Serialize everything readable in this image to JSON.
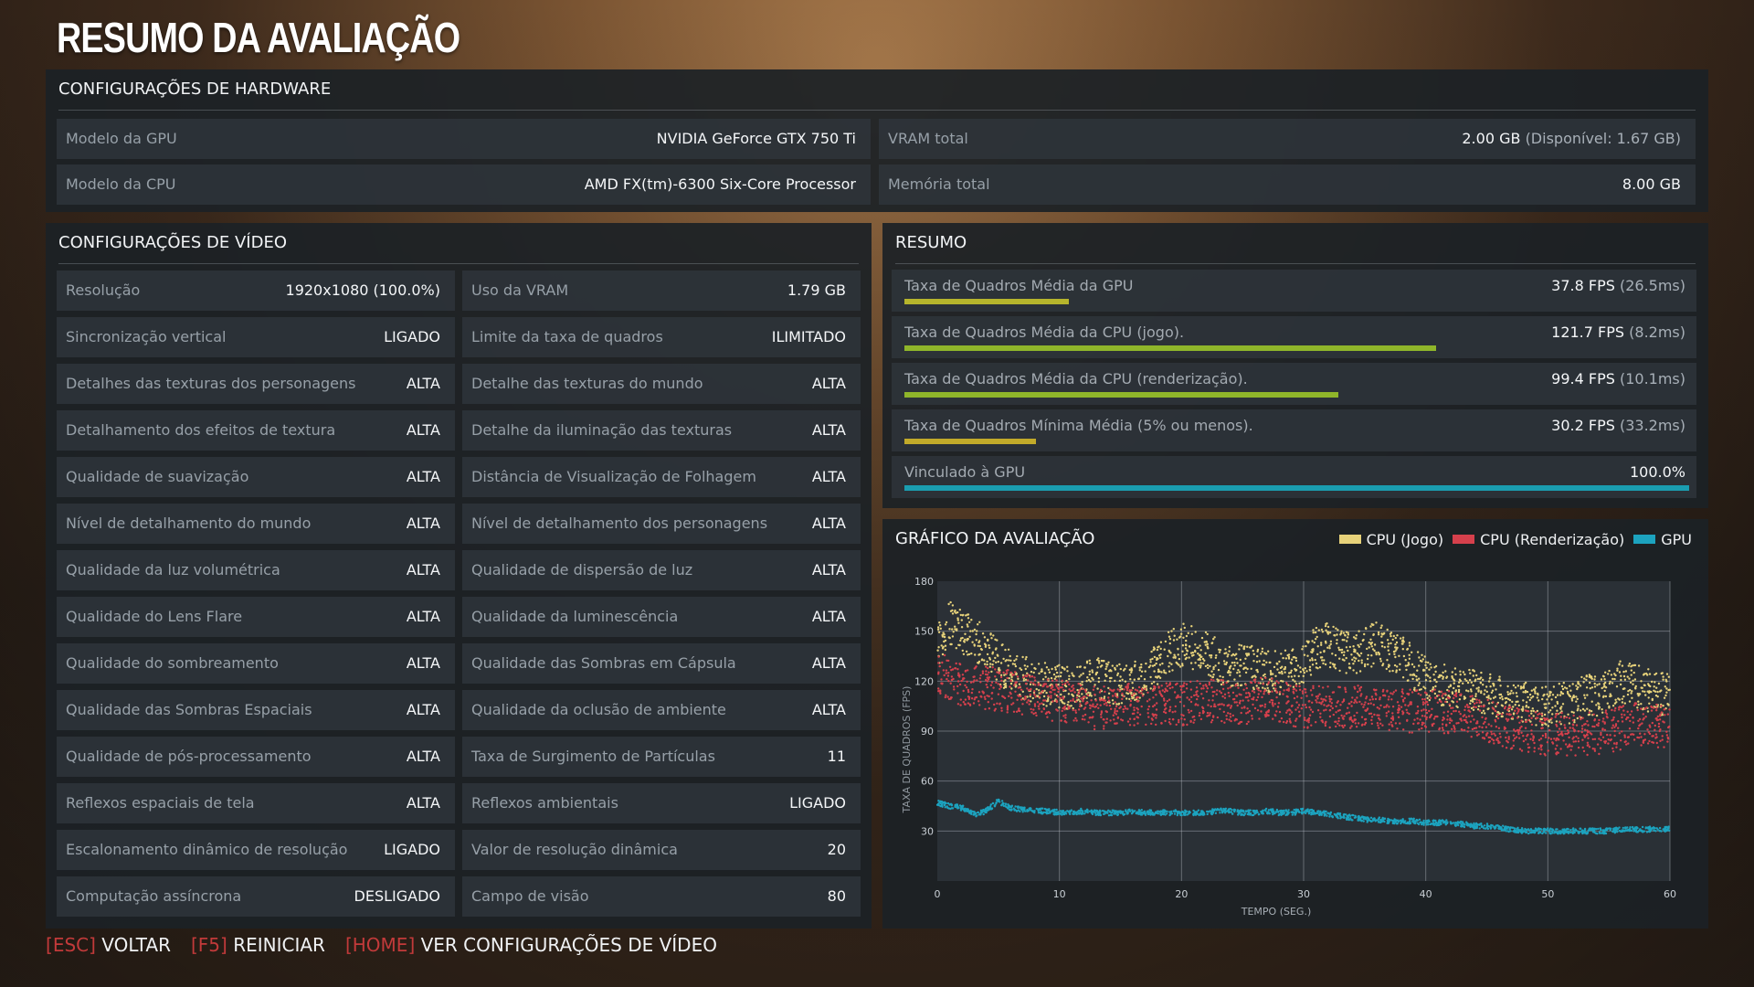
{
  "title": "RESUMO DA AVALIAÇÃO",
  "hardware": {
    "header": "CONFIGURAÇÕES DE HARDWARE",
    "gpu_label": "Modelo da GPU",
    "gpu_value": "NVIDIA GeForce GTX 750 Ti",
    "cpu_label": "Modelo da CPU",
    "cpu_value": "AMD FX(tm)-6300 Six-Core Processor",
    "vram_label": "VRAM total",
    "vram_value": "2.00 GB",
    "vram_note": "(Disponível: 1.67 GB)",
    "mem_label": "Memória total",
    "mem_value": "8.00 GB"
  },
  "video": {
    "header": "CONFIGURAÇÕES DE VÍDEO",
    "left": [
      {
        "label": "Resolução",
        "value": "1920x1080 (100.0%)"
      },
      {
        "label": "Sincronização vertical",
        "value": "LIGADO"
      },
      {
        "label": "Detalhes das texturas dos personagens",
        "value": "ALTA"
      },
      {
        "label": "Detalhamento dos efeitos de textura",
        "value": "ALTA"
      },
      {
        "label": "Qualidade de suavização",
        "value": "ALTA"
      },
      {
        "label": "Nível de detalhamento do mundo",
        "value": "ALTA"
      },
      {
        "label": "Qualidade da luz volumétrica",
        "value": "ALTA"
      },
      {
        "label": "Qualidade do Lens Flare",
        "value": "ALTA"
      },
      {
        "label": "Qualidade do sombreamento",
        "value": "ALTA"
      },
      {
        "label": "Qualidade das Sombras Espaciais",
        "value": "ALTA"
      },
      {
        "label": "Qualidade de pós-processamento",
        "value": "ALTA"
      },
      {
        "label": "Reflexos espaciais de tela",
        "value": "ALTA"
      },
      {
        "label": "Escalonamento dinâmico de resolução",
        "value": "LIGADO"
      },
      {
        "label": "Computação assíncrona",
        "value": "DESLIGADO"
      }
    ],
    "right": [
      {
        "label": "Uso da VRAM",
        "value": "1.79 GB"
      },
      {
        "label": "Limite da taxa de quadros",
        "value": "ILIMITADO"
      },
      {
        "label": "Detalhe das texturas do mundo",
        "value": "ALTA"
      },
      {
        "label": "Detalhe da iluminação das texturas",
        "value": "ALTA"
      },
      {
        "label": "Distância de Visualização de Folhagem",
        "value": "ALTA"
      },
      {
        "label": "Nível de detalhamento dos personagens",
        "value": "ALTA"
      },
      {
        "label": "Qualidade de dispersão de luz",
        "value": "ALTA"
      },
      {
        "label": "Qualidade da luminescência",
        "value": "ALTA"
      },
      {
        "label": "Qualidade das Sombras em Cápsula",
        "value": "ALTA"
      },
      {
        "label": "Qualidade da oclusão de ambiente",
        "value": "ALTA"
      },
      {
        "label": "Taxa de Surgimento de Partículas",
        "value": "11"
      },
      {
        "label": "Reflexos ambientais",
        "value": "LIGADO"
      },
      {
        "label": "Valor de resolução dinâmica",
        "value": "20"
      },
      {
        "label": "Campo de visão",
        "value": "80"
      }
    ]
  },
  "summary": {
    "header": "RESUMO",
    "rows": [
      {
        "label": "Taxa de Quadros Média da GPU",
        "value": "37.8 FPS",
        "note": "(26.5ms)",
        "fraction": 0.21,
        "color": "#b6b52c"
      },
      {
        "label": "Taxa de Quadros Média da CPU (jogo).",
        "value": "121.7 FPS",
        "note": "(8.2ms)",
        "fraction": 0.677,
        "color": "#8fb52a"
      },
      {
        "label": "Taxa de Quadros Média da CPU (renderização).",
        "value": "99.4 FPS",
        "note": "(10.1ms)",
        "fraction": 0.553,
        "color": "#8fb52a"
      },
      {
        "label": "Taxa de Quadros Mínima Média (5% ou menos).",
        "value": "30.2 FPS",
        "note": "(33.2ms)",
        "fraction": 0.168,
        "color": "#c2aa2a"
      },
      {
        "label": "Vinculado à GPU",
        "value": "100.0%",
        "note": "",
        "fraction": 1.0,
        "color": "#1a9db0"
      }
    ]
  },
  "graph": {
    "header": "GRÁFICO DA AVALIAÇÃO",
    "legend": [
      {
        "name": "CPU (Jogo)",
        "color": "#e7d27a"
      },
      {
        "name": "CPU (Renderização)",
        "color": "#d6404c"
      },
      {
        "name": "GPU",
        "color": "#1ca3bf"
      }
    ]
  },
  "chart_data": {
    "type": "scatter",
    "title": "GRÁFICO DA AVALIAÇÃO",
    "xlabel": "TEMPO (SEG.)",
    "ylabel": "TAXA DE QUADROS (FPS)",
    "xlim": [
      0,
      60
    ],
    "ylim": [
      0,
      180
    ],
    "xticks": [
      "0",
      "10",
      "20",
      "30",
      "40",
      "50",
      "60"
    ],
    "yticks": [
      "30",
      "60",
      "90",
      "120",
      "150",
      "180"
    ],
    "grid": true,
    "legend_position": "top-right",
    "series": [
      {
        "name": "CPU (Jogo)",
        "color": "#e7d27a",
        "points": [
          [
            0,
            140
          ],
          [
            1,
            155
          ],
          [
            2,
            150
          ],
          [
            3,
            145
          ],
          [
            4,
            140
          ],
          [
            5,
            132
          ],
          [
            6,
            125
          ],
          [
            7,
            122
          ],
          [
            8,
            120
          ],
          [
            9,
            118
          ],
          [
            10,
            117
          ],
          [
            11,
            116
          ],
          [
            12,
            118
          ],
          [
            13,
            122
          ],
          [
            14,
            120
          ],
          [
            15,
            118
          ],
          [
            16,
            120
          ],
          [
            17,
            122
          ],
          [
            18,
            130
          ],
          [
            19,
            138
          ],
          [
            20,
            142
          ],
          [
            21,
            140
          ],
          [
            22,
            138
          ],
          [
            23,
            132
          ],
          [
            24,
            128
          ],
          [
            25,
            130
          ],
          [
            26,
            128
          ],
          [
            27,
            126
          ],
          [
            28,
            125
          ],
          [
            29,
            128
          ],
          [
            30,
            132
          ],
          [
            31,
            140
          ],
          [
            32,
            142
          ],
          [
            33,
            138
          ],
          [
            34,
            135
          ],
          [
            35,
            140
          ],
          [
            36,
            143
          ],
          [
            37,
            138
          ],
          [
            38,
            135
          ],
          [
            39,
            128
          ],
          [
            40,
            122
          ],
          [
            41,
            118
          ],
          [
            42,
            116
          ],
          [
            43,
            115
          ],
          [
            44,
            114
          ],
          [
            45,
            112
          ],
          [
            46,
            110
          ],
          [
            47,
            110
          ],
          [
            48,
            108
          ],
          [
            49,
            106
          ],
          [
            50,
            104
          ],
          [
            51,
            106
          ],
          [
            52,
            108
          ],
          [
            53,
            110
          ],
          [
            54,
            112
          ],
          [
            55,
            116
          ],
          [
            56,
            120
          ],
          [
            57,
            118
          ],
          [
            58,
            115
          ],
          [
            59,
            112
          ],
          [
            60,
            112
          ]
        ]
      },
      {
        "name": "CPU (Renderização)",
        "color": "#d6404c",
        "points": [
          [
            0,
            125
          ],
          [
            1,
            122
          ],
          [
            2,
            118
          ],
          [
            3,
            118
          ],
          [
            4,
            116
          ],
          [
            5,
            115
          ],
          [
            6,
            114
          ],
          [
            7,
            112
          ],
          [
            8,
            110
          ],
          [
            9,
            110
          ],
          [
            10,
            108
          ],
          [
            11,
            106
          ],
          [
            12,
            105
          ],
          [
            13,
            104
          ],
          [
            14,
            104
          ],
          [
            15,
            105
          ],
          [
            16,
            106
          ],
          [
            17,
            106
          ],
          [
            18,
            105
          ],
          [
            19,
            106
          ],
          [
            20,
            106
          ],
          [
            21,
            107
          ],
          [
            22,
            108
          ],
          [
            23,
            108
          ],
          [
            24,
            107
          ],
          [
            25,
            106
          ],
          [
            26,
            108
          ],
          [
            27,
            110
          ],
          [
            28,
            108
          ],
          [
            29,
            106
          ],
          [
            30,
            105
          ],
          [
            31,
            104
          ],
          [
            32,
            104
          ],
          [
            33,
            104
          ],
          [
            34,
            105
          ],
          [
            35,
            104
          ],
          [
            36,
            103
          ],
          [
            37,
            103
          ],
          [
            38,
            102
          ],
          [
            39,
            102
          ],
          [
            40,
            102
          ],
          [
            41,
            102
          ],
          [
            42,
            101
          ],
          [
            43,
            100
          ],
          [
            44,
            98
          ],
          [
            45,
            96
          ],
          [
            46,
            94
          ],
          [
            47,
            92
          ],
          [
            48,
            90
          ],
          [
            49,
            89
          ],
          [
            50,
            88
          ],
          [
            51,
            88
          ],
          [
            52,
            88
          ],
          [
            53,
            88
          ],
          [
            54,
            89
          ],
          [
            55,
            90
          ],
          [
            56,
            92
          ],
          [
            57,
            94
          ],
          [
            58,
            94
          ],
          [
            59,
            93
          ],
          [
            60,
            92
          ]
        ]
      },
      {
        "name": "GPU",
        "color": "#1ca3bf",
        "points": [
          [
            0,
            47
          ],
          [
            1,
            45
          ],
          [
            2,
            44
          ],
          [
            3,
            40
          ],
          [
            4,
            42
          ],
          [
            5,
            48
          ],
          [
            6,
            44
          ],
          [
            7,
            43
          ],
          [
            8,
            42
          ],
          [
            9,
            42
          ],
          [
            10,
            41
          ],
          [
            11,
            41
          ],
          [
            12,
            42
          ],
          [
            13,
            41
          ],
          [
            14,
            41
          ],
          [
            15,
            41
          ],
          [
            16,
            42
          ],
          [
            17,
            41
          ],
          [
            18,
            41
          ],
          [
            19,
            41
          ],
          [
            20,
            41
          ],
          [
            21,
            41
          ],
          [
            22,
            41
          ],
          [
            23,
            42
          ],
          [
            24,
            42
          ],
          [
            25,
            41
          ],
          [
            26,
            41
          ],
          [
            27,
            42
          ],
          [
            28,
            41
          ],
          [
            29,
            41
          ],
          [
            30,
            42
          ],
          [
            31,
            41
          ],
          [
            32,
            40
          ],
          [
            33,
            39
          ],
          [
            34,
            38
          ],
          [
            35,
            37
          ],
          [
            36,
            37
          ],
          [
            37,
            36
          ],
          [
            38,
            36
          ],
          [
            39,
            36
          ],
          [
            40,
            35
          ],
          [
            41,
            35
          ],
          [
            42,
            35
          ],
          [
            43,
            34
          ],
          [
            44,
            33
          ],
          [
            45,
            33
          ],
          [
            46,
            32
          ],
          [
            47,
            31
          ],
          [
            48,
            30
          ],
          [
            49,
            30
          ],
          [
            50,
            30
          ],
          [
            51,
            30
          ],
          [
            52,
            30
          ],
          [
            53,
            30
          ],
          [
            54,
            30
          ],
          [
            55,
            30
          ],
          [
            56,
            31
          ],
          [
            57,
            31
          ],
          [
            58,
            31
          ],
          [
            59,
            31
          ],
          [
            60,
            31
          ]
        ]
      }
    ]
  },
  "footer": {
    "actions": [
      {
        "key": "ESC",
        "label": "VOLTAR"
      },
      {
        "key": "F5",
        "label": "REINICIAR"
      },
      {
        "key": "HOME",
        "label": "VER CONFIGURAÇÕES DE VÍDEO"
      }
    ]
  }
}
